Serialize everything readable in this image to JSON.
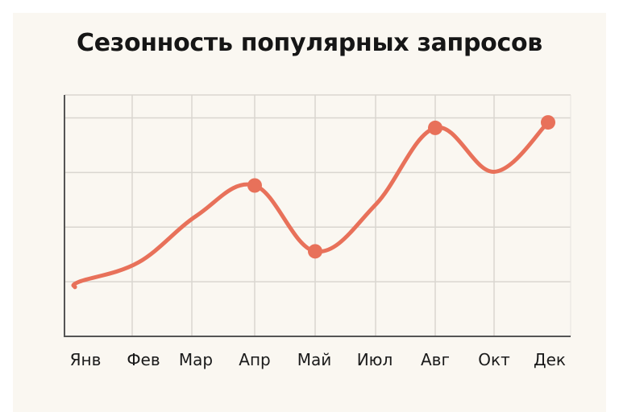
{
  "chart_data": {
    "type": "line",
    "title": "Сезонность популярных запросов",
    "xlabel": "",
    "ylabel": "",
    "categories": [
      "Янв",
      "Фев",
      "Мар",
      "Апр",
      "Май",
      "Июл",
      "Авг",
      "Окт",
      "Дек"
    ],
    "series": [
      {
        "values": [
          1.0,
          1.35,
          2.2,
          2.75,
          1.55,
          2.4,
          3.8,
          3.0,
          3.9
        ],
        "color": "#e8715a",
        "highlighted_points": [
          "Апр",
          "Май",
          "Авг",
          "Дек"
        ]
      }
    ],
    "ylim": [
      0.0,
      4.4
    ],
    "y_grid_count": 4,
    "x_grid": true,
    "y_grid": true,
    "y_tick_labels_shown": false,
    "legend": "none"
  }
}
